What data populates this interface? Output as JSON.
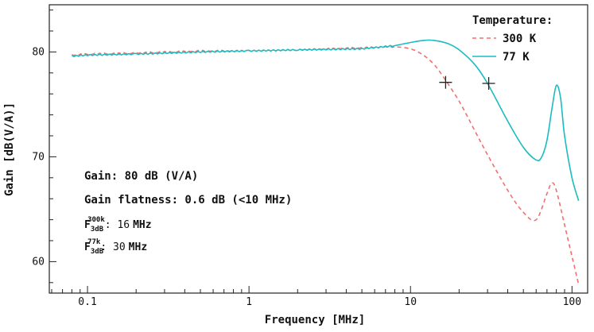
{
  "chart_data": {
    "type": "line",
    "xscale": "log",
    "xlabel": "Frequency [MHz]",
    "ylabel": "Gain [dB(V/A)]",
    "xlim": [
      0.058,
      125
    ],
    "ylim": [
      57,
      84.5
    ],
    "xticks": [
      0.1,
      1,
      10,
      100
    ],
    "xtick_labels": [
      "0.1",
      "1",
      "10",
      "100"
    ],
    "yticks": [
      60,
      70,
      80
    ],
    "ytick_labels": [
      "60",
      "70",
      "80"
    ],
    "legend": {
      "title": "Temperature:",
      "position": "top-right",
      "entries": [
        "300 K",
        "77 K"
      ]
    },
    "series": [
      {
        "name": "300 K",
        "color": "#f07070",
        "style": "dashed",
        "x": [
          0.08,
          0.1,
          0.2,
          0.5,
          1,
          2,
          5,
          8,
          10,
          12,
          14,
          16,
          20,
          25,
          30,
          40,
          50,
          60,
          70,
          75,
          80,
          90,
          100,
          110
        ],
        "y": [
          79.7,
          79.8,
          79.9,
          80.1,
          80.1,
          80.2,
          80.4,
          80.5,
          80.3,
          79.7,
          78.8,
          77.6,
          75.3,
          72.5,
          70.2,
          66.8,
          64.7,
          64.0,
          66.5,
          67.5,
          66.8,
          63.5,
          60.5,
          57.8
        ]
      },
      {
        "name": "77 K",
        "color": "#1bbcc0",
        "style": "solid",
        "x": [
          0.08,
          0.1,
          0.2,
          0.5,
          1,
          2,
          5,
          8,
          10,
          12,
          14,
          17,
          20,
          25,
          30,
          40,
          50,
          60,
          65,
          70,
          75,
          80,
          85,
          90,
          100,
          110
        ],
        "y": [
          79.6,
          79.7,
          79.8,
          80.0,
          80.1,
          80.2,
          80.3,
          80.6,
          80.9,
          81.1,
          81.1,
          80.8,
          80.2,
          78.8,
          77.0,
          73.4,
          70.9,
          69.7,
          70.0,
          71.6,
          74.5,
          76.8,
          75.6,
          72.0,
          68.0,
          65.8
        ]
      }
    ],
    "markers": [
      {
        "series": "300 K",
        "x": 16.5,
        "y": 77.1,
        "symbol": "+"
      },
      {
        "series": "77 K",
        "x": 30.5,
        "y": 77.0,
        "symbol": "+"
      }
    ],
    "annotations": [
      "Gain: 80 dB (V/A)",
      "Gain flatness: 0.6 dB (<10 MHz)"
    ],
    "f3db": [
      {
        "label": "F",
        "sub": "3dB",
        "sup": "300k",
        "value": "16",
        "unit": "MHz"
      },
      {
        "label": "F",
        "sub": "3dB",
        "sup": "77k",
        "value": "30",
        "unit": "MHz"
      }
    ]
  }
}
